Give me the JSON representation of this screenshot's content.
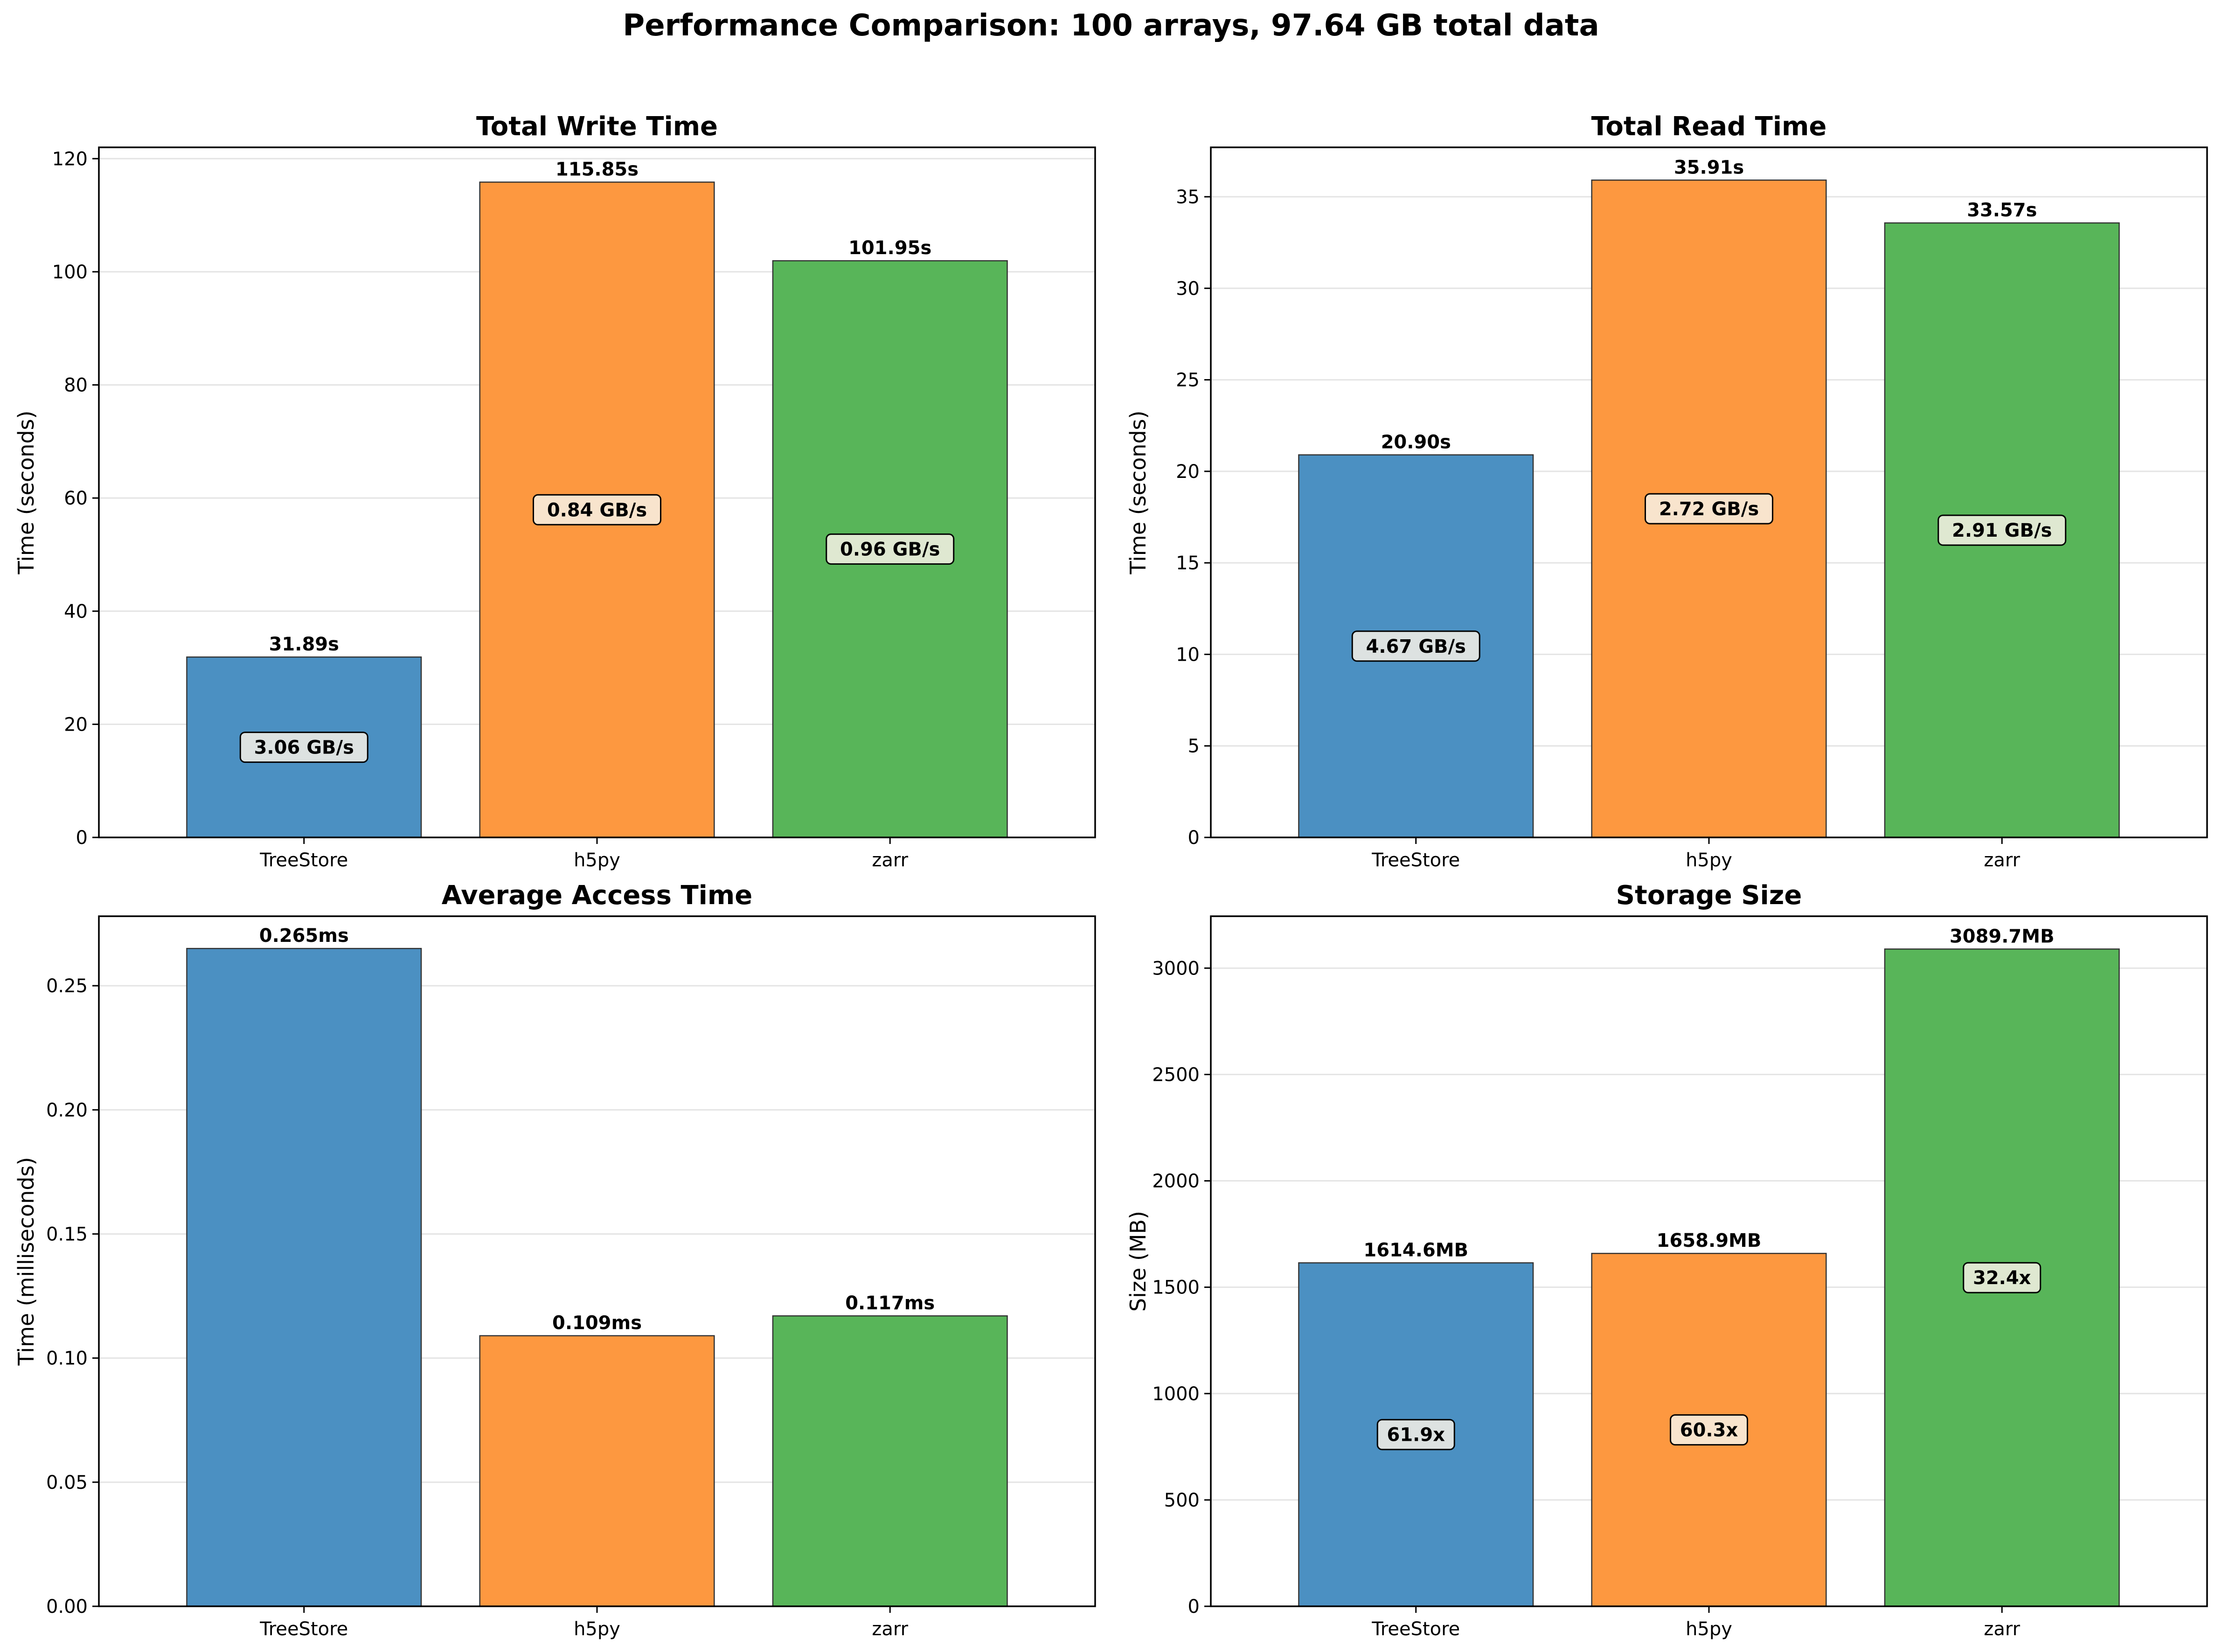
{
  "figure": {
    "suptitle": "Performance Comparison: 100 arrays, 97.64 GB total data"
  },
  "colors": {
    "TreeStore": "#4b90c2",
    "h5py": "#fd9840",
    "zarr": "#58b559",
    "bar_edge": "#333333",
    "grid": "#e4e4e4",
    "label_box": "#f7f1e6"
  },
  "chart_data": [
    {
      "type": "bar",
      "title": "Total Write Time",
      "xlabel": "",
      "ylabel": "Time (seconds)",
      "ylim": [
        0,
        122
      ],
      "yticks": [
        0,
        20,
        40,
        60,
        80,
        100,
        120
      ],
      "ytick_labels": [
        "0",
        "20",
        "40",
        "60",
        "80",
        "100",
        "120"
      ],
      "grid": true,
      "categories": [
        "TreeStore",
        "h5py",
        "zarr"
      ],
      "values": [
        31.89,
        115.85,
        101.95
      ],
      "value_labels": [
        "31.89s",
        "115.85s",
        "101.95s"
      ],
      "inner_labels": [
        "3.06 GB/s",
        "0.84 GB/s",
        "0.96 GB/s"
      ]
    },
    {
      "type": "bar",
      "title": "Total Read Time",
      "xlabel": "",
      "ylabel": "Time (seconds)",
      "ylim": [
        0,
        37.7
      ],
      "yticks": [
        0,
        5,
        10,
        15,
        20,
        25,
        30,
        35
      ],
      "ytick_labels": [
        "0",
        "5",
        "10",
        "15",
        "20",
        "25",
        "30",
        "35"
      ],
      "grid": true,
      "categories": [
        "TreeStore",
        "h5py",
        "zarr"
      ],
      "values": [
        20.9,
        35.91,
        33.57
      ],
      "value_labels": [
        "20.90s",
        "35.91s",
        "33.57s"
      ],
      "inner_labels": [
        "4.67 GB/s",
        "2.72 GB/s",
        "2.91 GB/s"
      ]
    },
    {
      "type": "bar",
      "title": "Average Access Time",
      "xlabel": "",
      "ylabel": "Time (milliseconds)",
      "ylim": [
        0,
        0.278
      ],
      "yticks": [
        0,
        0.05,
        0.1,
        0.15,
        0.2,
        0.25
      ],
      "ytick_labels": [
        "0.00",
        "0.05",
        "0.10",
        "0.15",
        "0.20",
        "0.25"
      ],
      "grid": true,
      "categories": [
        "TreeStore",
        "h5py",
        "zarr"
      ],
      "values": [
        0.265,
        0.109,
        0.117
      ],
      "value_labels": [
        "0.265ms",
        "0.109ms",
        "0.117ms"
      ],
      "inner_labels": []
    },
    {
      "type": "bar",
      "title": "Storage Size",
      "xlabel": "",
      "ylabel": "Size (MB)",
      "ylim": [
        0,
        3244
      ],
      "yticks": [
        0,
        500,
        1000,
        1500,
        2000,
        2500,
        3000
      ],
      "ytick_labels": [
        "0",
        "500",
        "1000",
        "1500",
        "2000",
        "2500",
        "3000"
      ],
      "grid": true,
      "categories": [
        "TreeStore",
        "h5py",
        "zarr"
      ],
      "values": [
        1614.6,
        1658.9,
        3089.7
      ],
      "value_labels": [
        "1614.6MB",
        "1658.9MB",
        "3089.7MB"
      ],
      "inner_labels": [
        "61.9x",
        "60.3x",
        "32.4x"
      ]
    }
  ]
}
